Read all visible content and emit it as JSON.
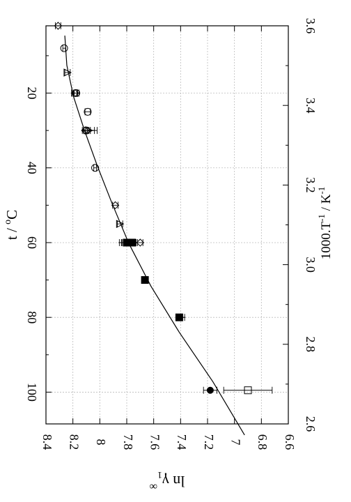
{
  "chart_data": {
    "type": "scatter",
    "title": "",
    "ylabel_html": "ln γ₁∞",
    "ylabel_parts": [
      "ln γ",
      "1",
      "∞"
    ],
    "left_axis_label_parts": [
      "t / ",
      "o",
      "C"
    ],
    "right_axis_label_parts": [
      "1000.T",
      "-1",
      " / K",
      "-1"
    ],
    "y_range": [
      6.6,
      8.4
    ],
    "t_range": [
      2.0,
      108.5
    ],
    "invT_range": [
      2.6,
      3.6
    ],
    "y_ticks": [
      "8.4",
      "8.2",
      "8",
      "7.8",
      "7.6",
      "7.4",
      "7.2",
      "7",
      "6.8",
      "6.6"
    ],
    "t_ticks": [
      "20",
      "40",
      "60",
      "80",
      "100"
    ],
    "invT_ticks": [
      "2.6",
      "2.8",
      "3.0",
      "3.2",
      "3.4",
      "3.6"
    ],
    "grid": true,
    "fit_curve": {
      "type": "line",
      "points": [
        [
          3.6,
          8.26
        ],
        [
          3.5,
          8.245
        ],
        [
          3.4,
          8.195
        ],
        [
          3.3,
          8.115
        ],
        [
          3.2,
          8.02
        ],
        [
          3.1,
          7.91
        ],
        [
          3.0,
          7.785
        ],
        [
          2.9,
          7.62
        ],
        [
          2.8,
          7.41
        ],
        [
          2.7,
          7.16
        ],
        [
          2.6,
          6.925
        ]
      ]
    },
    "series": [
      {
        "marker": "diamond-open",
        "points": [
          {
            "t": 2,
            "y": 8.31,
            "err_y": 0.02
          },
          {
            "t": 20,
            "y": 8.185,
            "err_y": 0.02
          },
          {
            "t": 30,
            "y": 8.11,
            "err_y": 0.02
          },
          {
            "t": 50,
            "y": 7.885,
            "err_y": 0.02
          },
          {
            "t": 60,
            "y": 7.7,
            "err_y": 0.02
          }
        ]
      },
      {
        "marker": "circle-open",
        "points": [
          {
            "t": 8,
            "y": 8.265,
            "err_y": 0.01
          },
          {
            "t": 20,
            "y": 8.175,
            "err_y": 0.02
          },
          {
            "t": 25,
            "y": 8.09,
            "err_y": 0.02
          },
          {
            "t": 30,
            "y": 8.1,
            "err_y": 0.02
          },
          {
            "t": 40,
            "y": 8.035,
            "err_y": 0.01
          }
        ]
      },
      {
        "marker": "triangle-down-open",
        "points": [
          {
            "t": 14.5,
            "y": 8.24,
            "err_y": 0.02
          },
          {
            "t": 30,
            "y": 8.08,
            "err_y": 0.04
          },
          {
            "t": 55,
            "y": 7.85,
            "err_y": 0.02
          }
        ]
      },
      {
        "marker": "cross",
        "points": [
          {
            "t": 20,
            "y": 8.19,
            "err_y": 0.02
          },
          {
            "t": 30,
            "y": 8.07,
            "err_y": 0.05
          },
          {
            "t": 60,
            "y": 7.835,
            "err_y": 0.02
          },
          {
            "t": 80,
            "y": 7.39,
            "err_y": 0.02
          }
        ]
      },
      {
        "marker": "square-filled",
        "points": [
          {
            "t": 60,
            "y": 7.8,
            "err_y": 0.04
          },
          {
            "t": 60,
            "y": 7.76,
            "err_y": 0.03
          },
          {
            "t": 70,
            "y": 7.665,
            "err_y": 0.02
          },
          {
            "t": 80,
            "y": 7.41,
            "err_y": 0.02
          }
        ]
      },
      {
        "marker": "circle-filled",
        "points": [
          {
            "t": 99.5,
            "y": 7.18,
            "err_y": 0.05
          }
        ]
      },
      {
        "marker": "square-open",
        "points": [
          {
            "t": 99.5,
            "y": 6.9,
            "err_y": 0.18
          }
        ]
      }
    ]
  }
}
